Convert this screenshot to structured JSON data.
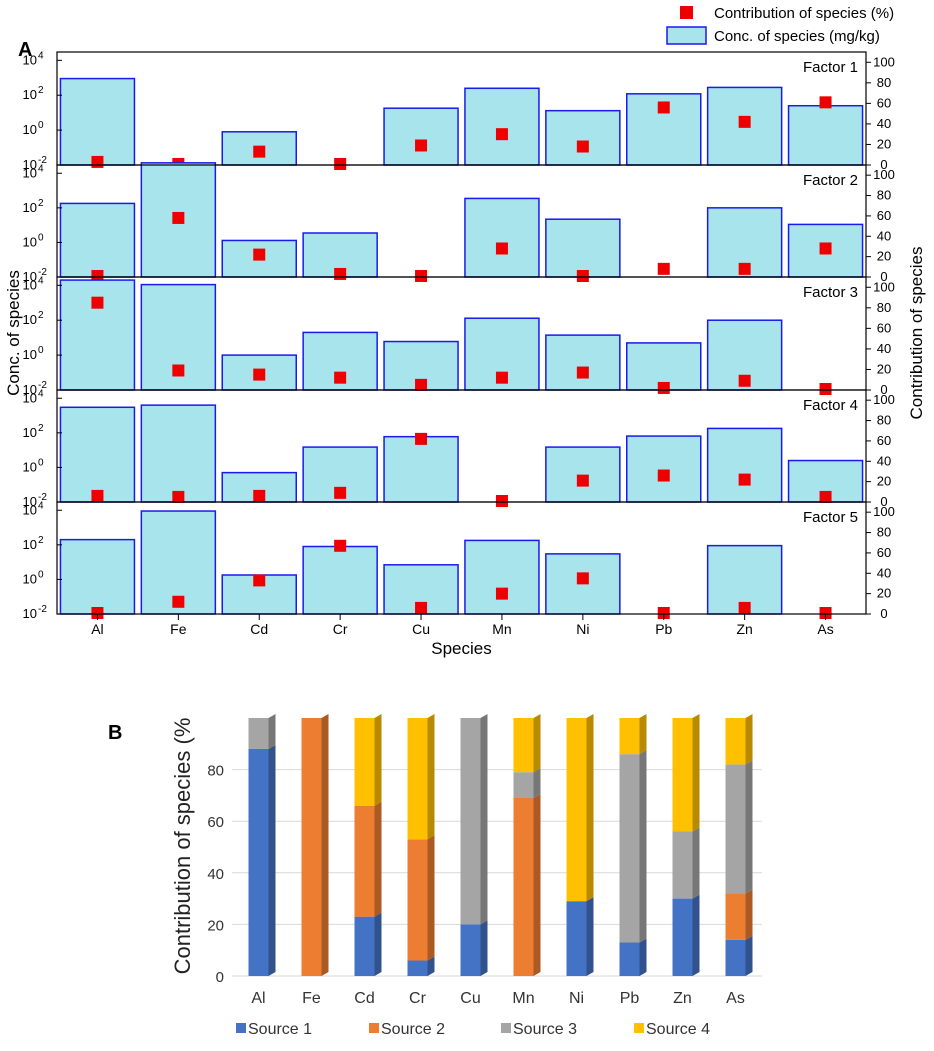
{
  "chart_data": [
    {
      "panel_label": "A",
      "type": "bar",
      "categories": [
        "Al",
        "Fe",
        "Cd",
        "Cr",
        "Cu",
        "Mn",
        "Ni",
        "Pb",
        "Zn",
        "As"
      ],
      "xlabel": "Species",
      "ylabel": "Conc. of species",
      "y2label": "Contribution of species",
      "yscale": "log",
      "ylim": [
        0.01,
        30000
      ],
      "y2lim": [
        0,
        110
      ],
      "yticks": [
        {
          "base": "10",
          "exp": "-2"
        },
        {
          "base": "10",
          "exp": "0"
        },
        {
          "base": "10",
          "exp": "2"
        },
        {
          "base": "10",
          "exp": "4"
        }
      ],
      "y2ticks": [
        "0",
        "20",
        "40",
        "60",
        "80",
        "100"
      ],
      "legend": {
        "placement": "top-right",
        "entries": [
          "Contribution of species (%)",
          "Conc. of species (mg/kg)"
        ]
      },
      "colors": {
        "bar_fill": "#a8e4ec",
        "bar_edge": "#1a1aee",
        "marker": "#ee0000"
      },
      "factors": [
        {
          "name": "Factor 1",
          "conc": [
            900,
            null,
            0.8,
            null,
            18,
            250,
            13,
            120,
            280,
            25
          ],
          "contribution": [
            3,
            1,
            13,
            1,
            19,
            30,
            18,
            56,
            42,
            61
          ]
        },
        {
          "name": "Factor 2",
          "conc": [
            180,
            40000,
            1.3,
            3.5,
            null,
            350,
            22,
            null,
            100,
            11
          ],
          "contribution": [
            1,
            58,
            22,
            3,
            0.5,
            28,
            0.5,
            8,
            8,
            28
          ]
        },
        {
          "name": "Factor 3",
          "conc": [
            20000,
            11000,
            1.0,
            20,
            6,
            130,
            14,
            5,
            100,
            null
          ],
          "contribution": [
            85,
            19,
            15,
            12,
            5,
            12,
            17,
            2,
            9,
            0.5
          ]
        },
        {
          "name": "Factor 4",
          "conc": [
            3000,
            4000,
            0.5,
            15,
            60,
            null,
            15,
            65,
            180,
            2.5
          ],
          "contribution": [
            6,
            5,
            6,
            9,
            62,
            0.5,
            21,
            26,
            22,
            5
          ]
        },
        {
          "name": "Factor 5",
          "conc": [
            200,
            9000,
            1.8,
            80,
            7,
            180,
            30,
            null,
            90,
            null
          ],
          "contribution": [
            0,
            12,
            33,
            67,
            6,
            20,
            35,
            0,
            6,
            0
          ]
        }
      ]
    },
    {
      "panel_label": "B",
      "type": "bar",
      "stacked": true,
      "categories": [
        "Al",
        "Fe",
        "Cd",
        "Cr",
        "Cu",
        "Mn",
        "Ni",
        "Pb",
        "Zn",
        "As"
      ],
      "ylabel": "Contribution of species (%",
      "ylim": [
        0,
        100
      ],
      "yticks": [
        "0",
        "20",
        "40",
        "60",
        "80"
      ],
      "legend": {
        "placement": "bottom"
      },
      "series": [
        {
          "name": "Source 1",
          "color": "#4472c4",
          "values": [
            88,
            0,
            23,
            6,
            20,
            0,
            29,
            13,
            30,
            14
          ]
        },
        {
          "name": "Source 2",
          "color": "#ed7d31",
          "values": [
            0,
            100,
            43,
            47,
            0,
            69,
            0,
            0,
            0,
            18
          ]
        },
        {
          "name": "Source 3",
          "color": "#a5a5a5",
          "values": [
            12,
            0,
            0,
            0,
            80,
            10,
            0,
            73,
            26,
            50
          ]
        },
        {
          "name": "Source 4",
          "color": "#ffc000",
          "values": [
            0,
            0,
            34,
            47,
            0,
            21,
            71,
            14,
            44,
            18
          ]
        }
      ]
    }
  ]
}
